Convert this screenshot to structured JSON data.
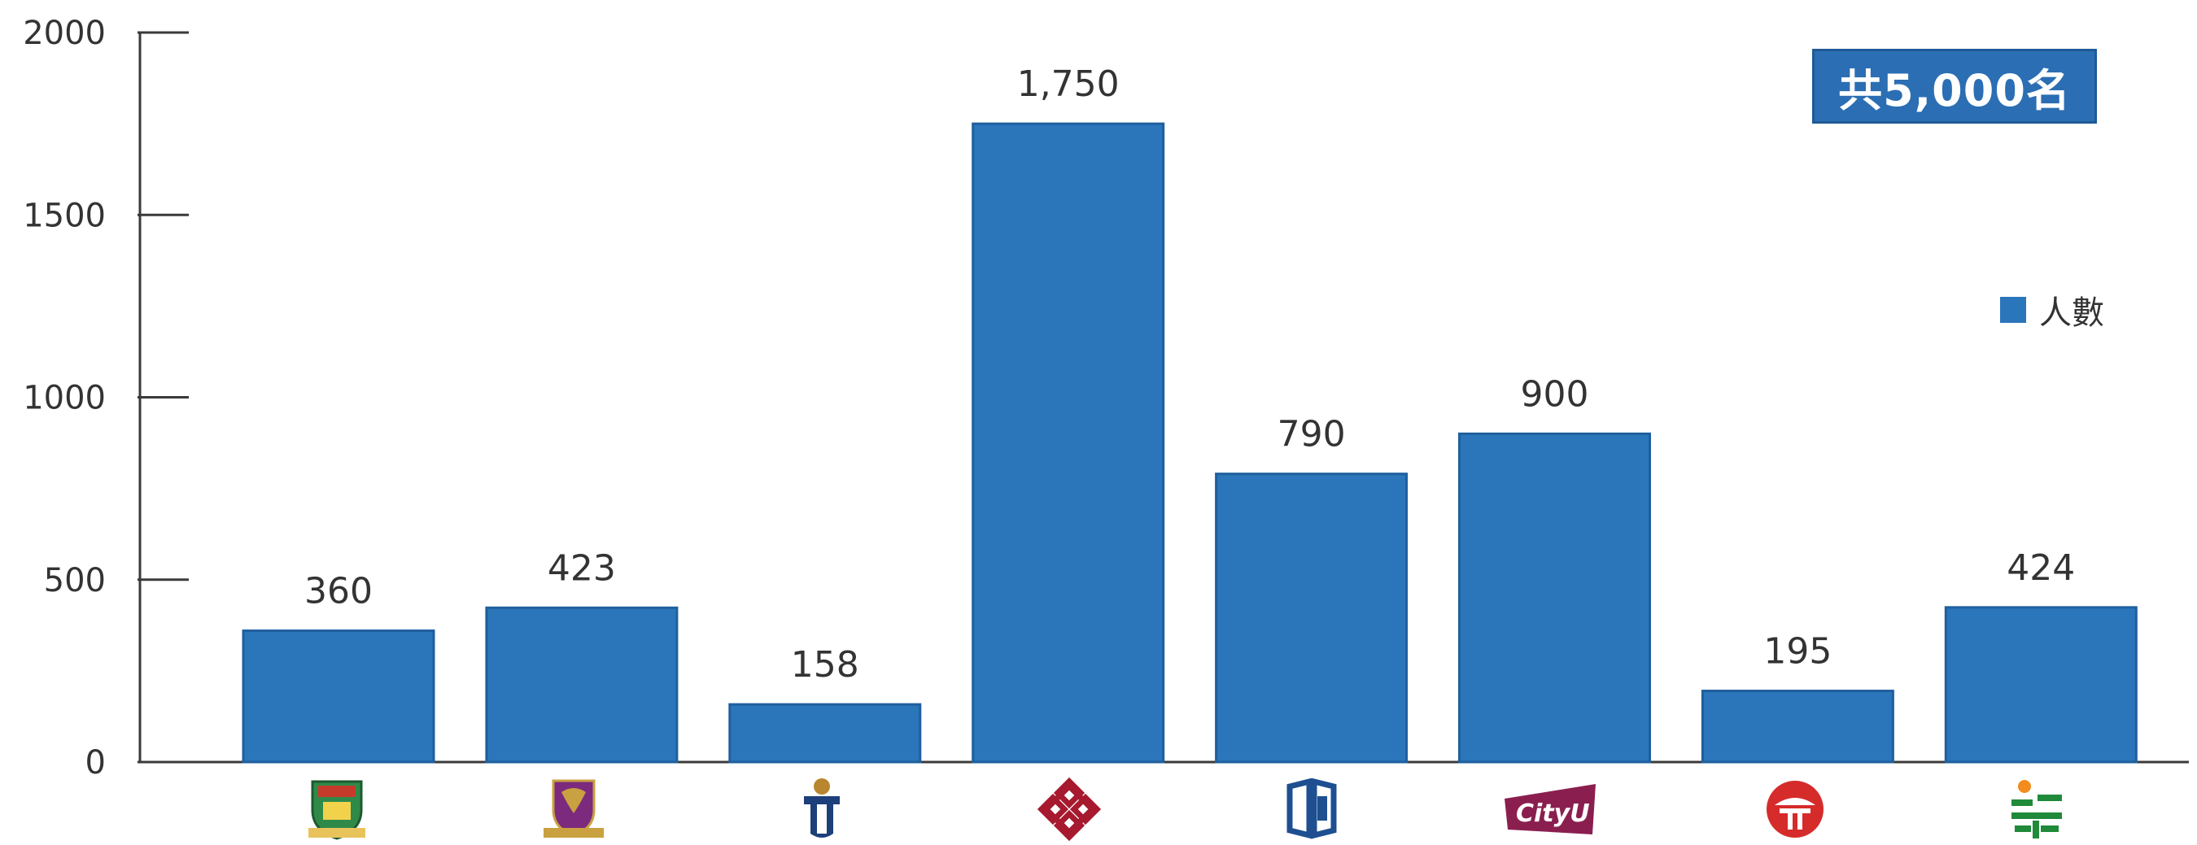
{
  "total_badge": "共5,000名",
  "legend_label": "人數",
  "colors": {
    "bar": "#2b76ba",
    "bar_edge": "#1f5f9e",
    "badge": "#2b6eb3",
    "axis": "#3a3a3a"
  },
  "chart_data": {
    "type": "bar",
    "categories": [
      "HKU",
      "CUHK",
      "HKUST",
      "PolyU",
      "HKBU",
      "CityU",
      "LingnanU",
      "EdUHK"
    ],
    "series": [
      {
        "name": "人數",
        "values": [
          360,
          423,
          158,
          1750,
          790,
          900,
          195,
          424
        ]
      }
    ],
    "data_labels": [
      "360",
      "423",
      "158",
      "1,750",
      "790",
      "900",
      "195",
      "424"
    ],
    "yticks": [
      0,
      500,
      1000,
      1500,
      2000
    ],
    "ylim": [
      0,
      2000
    ],
    "grid": false,
    "legend_position": "right"
  },
  "category_logos": [
    "hku-crest-icon",
    "cuhk-crest-icon",
    "hkust-icon",
    "polyu-icon",
    "hkbu-icon",
    "cityu-icon",
    "lingnan-icon",
    "eduhk-icon"
  ],
  "cityu_logo_text": "CityU"
}
